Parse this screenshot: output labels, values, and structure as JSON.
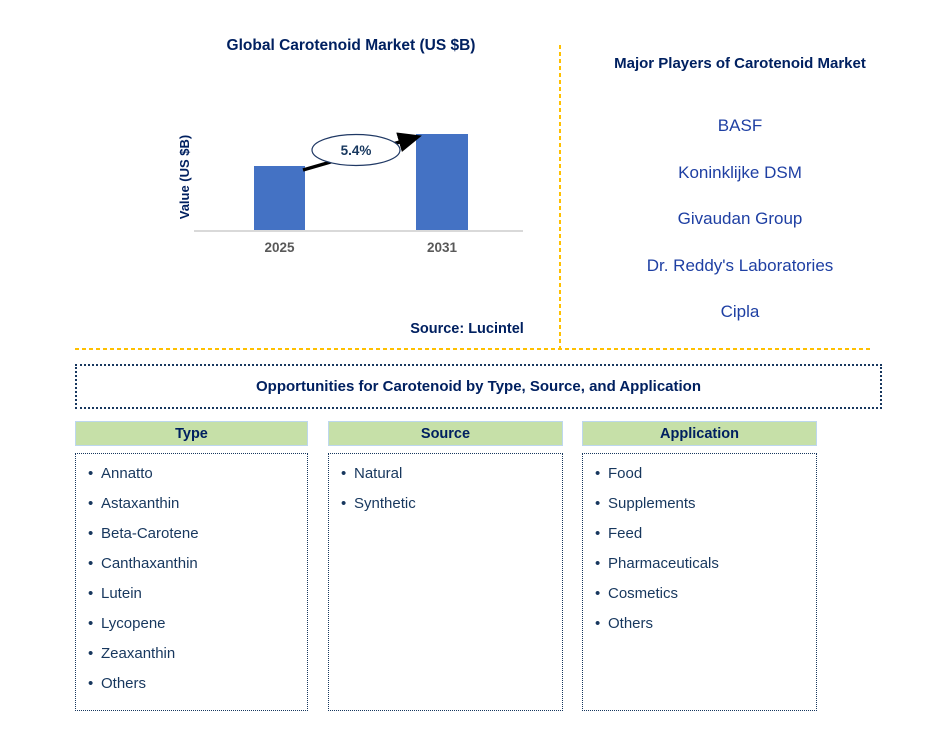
{
  "colors": {
    "navy": "#002060",
    "item_navy": "#17375E",
    "player_blue": "#1E3FA3",
    "bar_blue": "#4472C4",
    "axis_gray": "#D9D9D9",
    "tick_gray": "#595959",
    "divider_orange": "#FFC000",
    "green_header": "#C6E0A8"
  },
  "chart": {
    "title": "Global Carotenoid Market (US $B)",
    "y_axis_label": "Value (US $B)",
    "categories": [
      "2025",
      "2031"
    ],
    "cagr_label": "5.4%",
    "source_note": "Source: Lucintel"
  },
  "chart_data": {
    "type": "bar",
    "title": "Global Carotenoid Market (US $B)",
    "xlabel": "",
    "ylabel": "Value (US $B)",
    "categories": [
      "2025",
      "2031"
    ],
    "values_relative": [
      1.0,
      1.5
    ],
    "value_labels_shown": false,
    "annotation": "5.4% growth arrow from 2025 bar to 2031 bar",
    "bar_color": "#4472C4",
    "legend": "none",
    "grid": false,
    "source": "Source: Lucintel"
  },
  "major_players": {
    "title": "Major Players of Carotenoid Market",
    "players": [
      "BASF",
      "Koninklijke DSM",
      "Givaudan Group",
      "Dr. Reddy's Laboratories",
      "Cipla"
    ]
  },
  "opportunities": {
    "title": "Opportunities for Carotenoid by Type, Source, and Application",
    "columns": [
      {
        "header": "Type",
        "items": [
          "Annatto",
          "Astaxanthin",
          "Beta-Carotene",
          "Canthaxanthin",
          "Lutein",
          "Lycopene",
          "Zeaxanthin",
          "Others"
        ]
      },
      {
        "header": "Source",
        "items": [
          "Natural",
          "Synthetic"
        ]
      },
      {
        "header": "Application",
        "items": [
          "Food",
          "Supplements",
          "Feed",
          "Pharmaceuticals",
          "Cosmetics",
          "Others"
        ]
      }
    ]
  }
}
